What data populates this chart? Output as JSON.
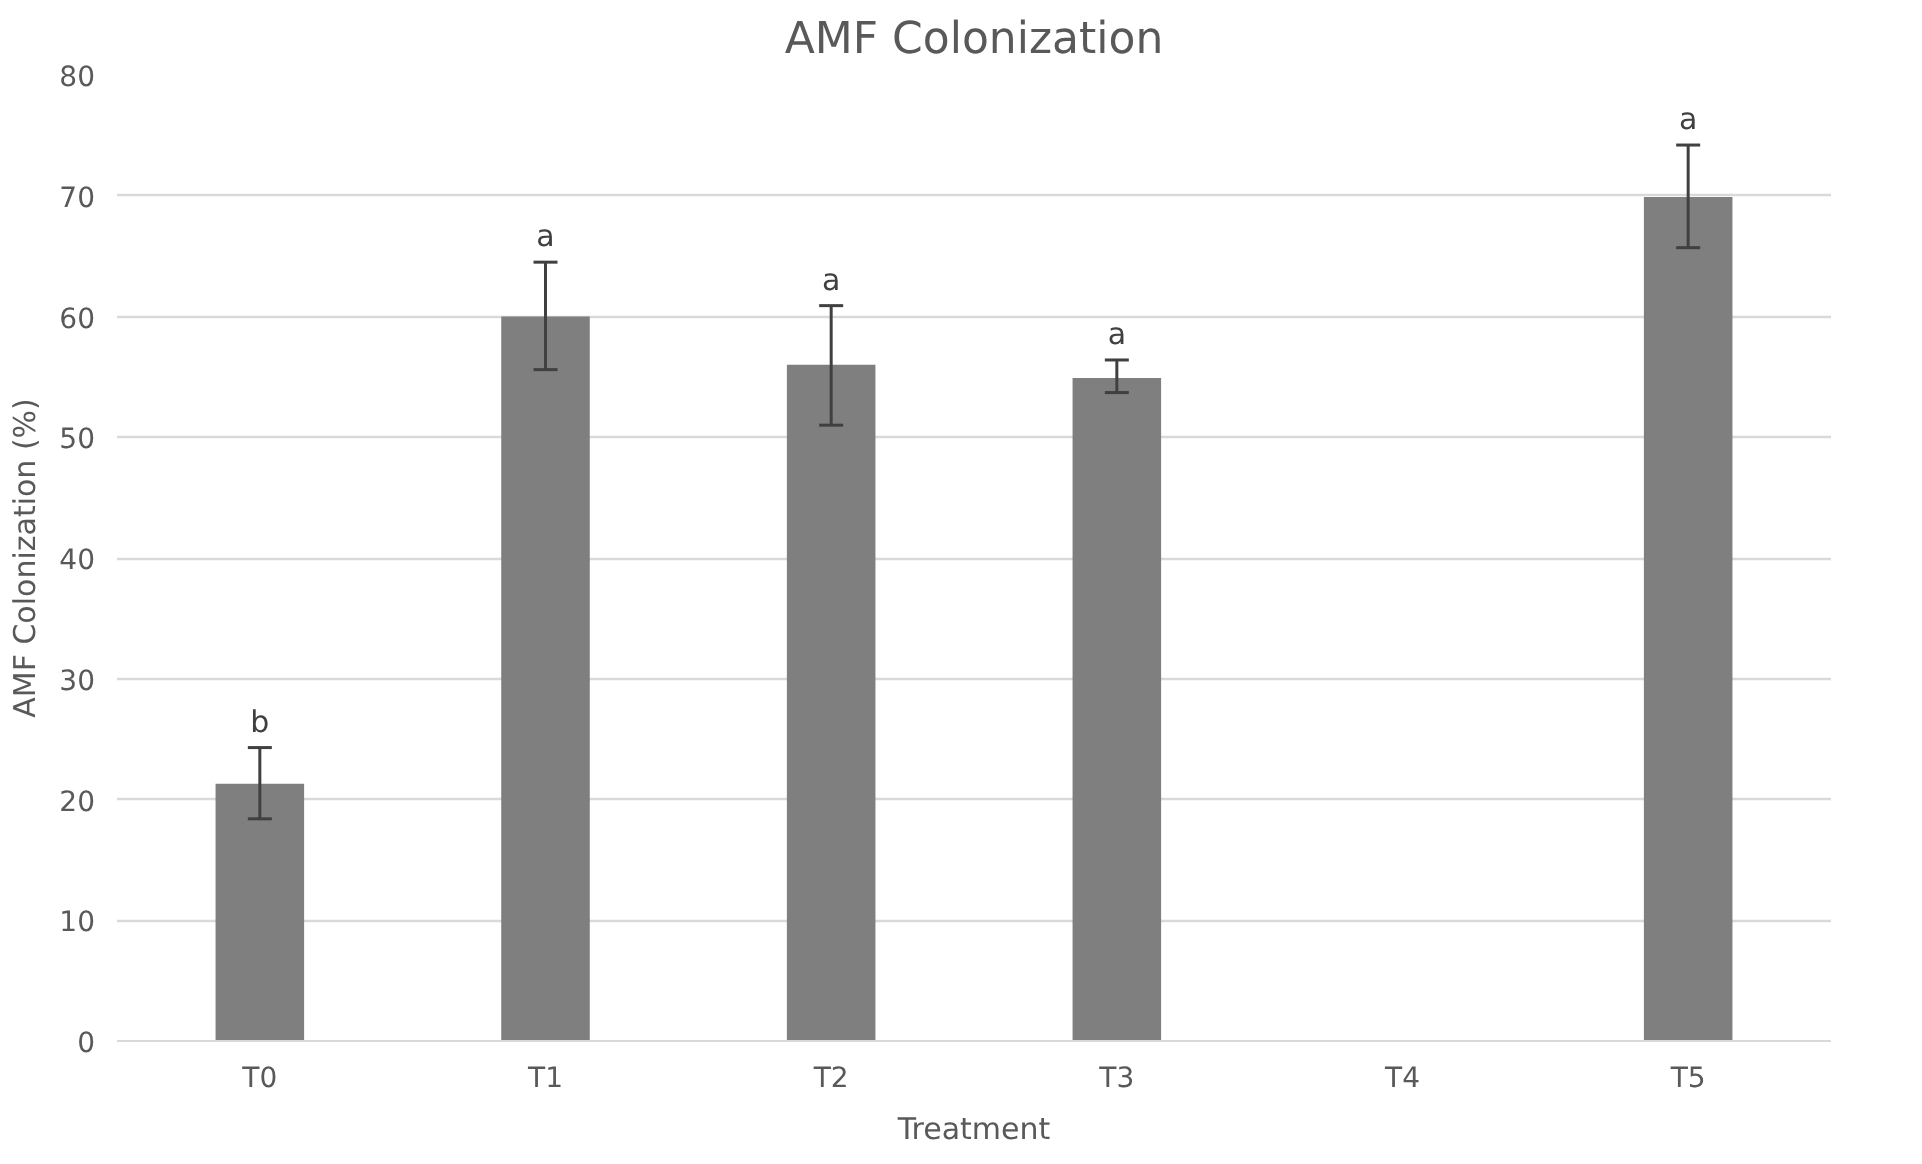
{
  "chart_data": {
    "type": "bar",
    "title": "AMF Colonization",
    "xlabel": "Treatment",
    "ylabel": "AMF Colonization (%)",
    "categories": [
      "T0",
      "T1",
      "T2",
      "T3",
      "T4",
      "T5"
    ],
    "values": [
      21.3,
      60.0,
      56.0,
      54.9,
      null,
      69.9
    ],
    "errors": [
      [
        18.4,
        24.3
      ],
      [
        55.6,
        64.5
      ],
      [
        51.0,
        60.9
      ],
      [
        53.7,
        56.4
      ],
      null,
      [
        65.7,
        74.2
      ]
    ],
    "color": "#7f7f7f",
    "ylim": [
      0,
      80
    ],
    "yticks": [
      0,
      10,
      20,
      30,
      40,
      50,
      60,
      70,
      80
    ],
    "grid": "y",
    "annotations": [
      {
        "text": "b",
        "x": "T0",
        "y": 24.3
      },
      {
        "text": "a",
        "x": "T1",
        "y": 64.5
      },
      {
        "text": "a",
        "x": "T2",
        "y": 60.9
      },
      {
        "text": "a",
        "x": "T3",
        "y": 56.4
      },
      {
        "text": "a",
        "x": "T5",
        "y": 74.2
      }
    ]
  }
}
